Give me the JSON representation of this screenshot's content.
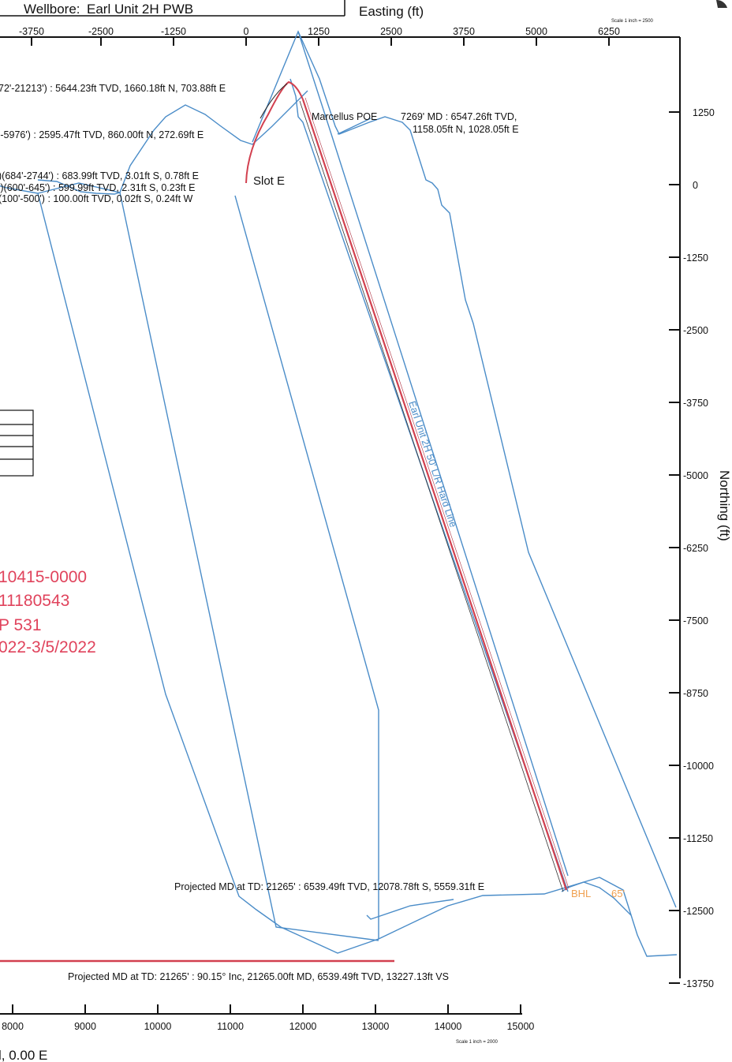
{
  "header": {
    "wellbore_label": "Wellbore:",
    "wellbore_name": "Earl Unit 2H PWB",
    "easting_title": "Easting (ft)",
    "scale_top": "Scale 1 inch = 2500"
  },
  "axes": {
    "easting_ticks": [
      "-3750",
      "-2500",
      "-1250",
      "0",
      "1250",
      "2500",
      "3750",
      "5000",
      "6250"
    ],
    "northing_ticks": [
      "1250",
      "0",
      "-1250",
      "-2500",
      "-3750",
      "-5000",
      "-6250",
      "-7500",
      "-8750",
      "-10000",
      "-11250",
      "-12500",
      "-13750"
    ],
    "northing_title": "Northing (ft)",
    "bottom_ticks": [
      "8000",
      "9000",
      "10000",
      "11000",
      "12000",
      "13000",
      "14000",
      "15000"
    ],
    "scale_bottom": "Scale 1 inch = 2000",
    "bottom_left_fragment": "l, 0.00 E"
  },
  "annotations": {
    "a1": "72'-21213') : 5644.23ft TVD, 1660.18ft N, 703.88ft E",
    "a2": "'-5976') : 2595.47ft TVD, 860.00ft N, 272.69ft E",
    "a3": ")(684'-2744') : 683.99ft TVD, 3.01ft S, 0.78ft E",
    "a4": "')(600'-645') : 599.99ft TVD, 2.31ft S, 0.23ft E",
    "a5": "(100'-500') : 100.00ft TVD, 0.02ft S, 0.24ft W",
    "slot": "Slot E",
    "poe_name": "Marcellus POE",
    "poe_line1": "7269' MD : 6547.26ft TVD,",
    "poe_line2": "1158.05ft N, 1028.05ft E",
    "hardline": "Earl Unit 2H 50' L/R Hard Line",
    "td_plan": "Projected MD at TD: 21265' : 6539.49ft TVD, 12078.78ft S, 5559.31ft E",
    "bhl": "BHL",
    "bhl_num": "65'",
    "td_section": "Projected MD at TD: 21265' : 90.15° Inc, 21265.00ft MD, 6539.49ft TVD, 13227.13ft VS"
  },
  "stamp": {
    "line1": "10415-0000",
    "line2": "11180543",
    "line3": "P 531",
    "line4": "022-3/5/2022"
  },
  "colors": {
    "lease": "#4a8cc8",
    "wellpath": "#d2404f",
    "stamp": "#e0435c",
    "bhl": "#f0a050",
    "axis": "#111111"
  }
}
